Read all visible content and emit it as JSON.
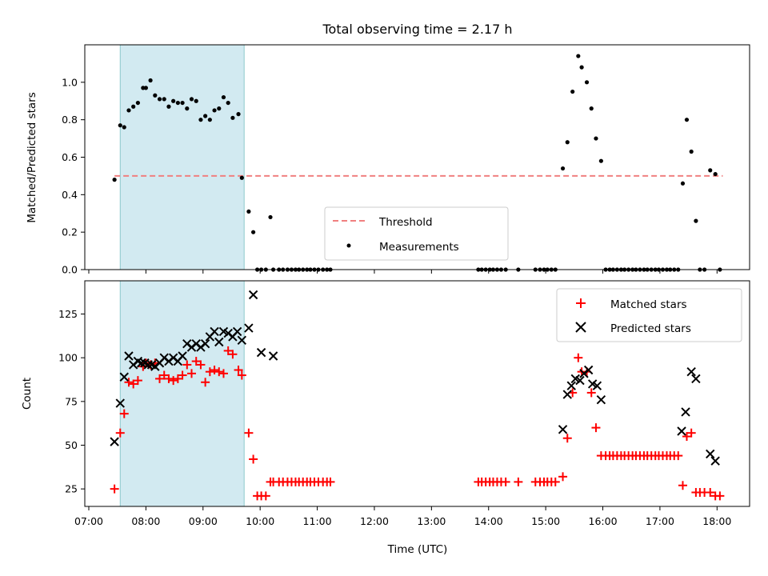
{
  "chart_data": {
    "type": "scatter",
    "title": "Total observing time = 2.17 h",
    "xlabel": "Time (UTC)",
    "x_tick_labels": [
      "07:00",
      "08:00",
      "09:00",
      "10:00",
      "11:00",
      "12:00",
      "13:00",
      "14:00",
      "15:00",
      "16:00",
      "17:00",
      "18:00"
    ],
    "x_tick_hours": [
      7,
      8,
      9,
      10,
      11,
      12,
      13,
      14,
      15,
      16,
      17,
      18
    ],
    "xlim_hours": [
      6.93,
      18.57
    ],
    "observing_window_hours": [
      7.55,
      9.72
    ],
    "colors": {
      "window": "#add8e6",
      "threshold": "#f08080",
      "measurements": "#000000",
      "matched": "#ff0000",
      "predicted": "#000000"
    },
    "panels": [
      {
        "ylabel": "Matched/Predicted stars",
        "ylim": [
          0,
          1.2
        ],
        "yticks": [
          0.0,
          0.2,
          0.4,
          0.6,
          0.8,
          1.0
        ],
        "ytick_labels": [
          "0.0",
          "0.2",
          "0.4",
          "0.6",
          "0.8",
          "1.0"
        ],
        "threshold": 0.5,
        "threshold_xrange": [
          7.45,
          18.1
        ],
        "legend": {
          "placement": "lower-center",
          "threshold_label": "Threshold",
          "measurements_label": "Measurements"
        },
        "measurements": {
          "x": [
            7.45,
            7.55,
            7.62,
            7.7,
            7.78,
            7.86,
            7.95,
            8.0,
            8.08,
            8.16,
            8.24,
            8.32,
            8.4,
            8.48,
            8.56,
            8.64,
            8.72,
            8.8,
            8.88,
            8.96,
            9.04,
            9.12,
            9.2,
            9.28,
            9.36,
            9.44,
            9.52,
            9.62,
            9.68,
            9.8,
            9.88,
            9.95,
            10.02,
            10.1,
            10.18,
            10.23,
            10.33,
            10.4,
            10.48,
            10.55,
            10.62,
            10.68,
            10.75,
            10.82,
            10.88,
            10.95,
            11.02,
            11.1,
            11.17,
            11.23,
            13.82,
            13.88,
            13.95,
            14.02,
            14.08,
            14.15,
            14.22,
            14.3,
            14.52,
            14.82,
            14.9,
            14.97,
            15.03,
            15.1,
            15.17,
            15.3,
            15.38,
            15.47,
            15.57,
            15.63,
            15.72,
            15.8,
            15.88,
            15.97,
            16.05,
            16.12,
            16.18,
            16.25,
            16.32,
            16.38,
            16.45,
            16.52,
            16.58,
            16.65,
            16.72,
            16.78,
            16.85,
            16.92,
            16.98,
            17.05,
            17.12,
            17.18,
            17.25,
            17.32,
            17.4,
            17.47,
            17.55,
            17.63,
            17.7,
            17.78,
            17.88,
            17.97,
            18.05
          ],
          "y": [
            0.48,
            0.77,
            0.76,
            0.85,
            0.87,
            0.89,
            0.97,
            0.97,
            1.01,
            0.93,
            0.91,
            0.91,
            0.87,
            0.9,
            0.89,
            0.89,
            0.86,
            0.91,
            0.9,
            0.8,
            0.82,
            0.8,
            0.85,
            0.86,
            0.92,
            0.89,
            0.81,
            0.83,
            0.49,
            0.31,
            0.2,
            0.0,
            0.0,
            0.0,
            0.28,
            0.0,
            0.0,
            0.0,
            0.0,
            0.0,
            0.0,
            0.0,
            0.0,
            0.0,
            0.0,
            0.0,
            0.0,
            0.0,
            0.0,
            0.0,
            0.0,
            0.0,
            0.0,
            0.0,
            0.0,
            0.0,
            0.0,
            0.0,
            0.0,
            0.0,
            0.0,
            0.0,
            0.0,
            0.0,
            0.0,
            0.54,
            0.68,
            0.95,
            1.14,
            1.08,
            1.0,
            0.86,
            0.7,
            0.58,
            0.0,
            0.0,
            0.0,
            0.0,
            0.0,
            0.0,
            0.0,
            0.0,
            0.0,
            0.0,
            0.0,
            0.0,
            0.0,
            0.0,
            0.0,
            0.0,
            0.0,
            0.0,
            0.0,
            0.0,
            0.46,
            0.8,
            0.63,
            0.26,
            0.0,
            0.0,
            0.53,
            0.51,
            0.0
          ]
        }
      },
      {
        "ylabel": "Count",
        "ylim": [
          15,
          144
        ],
        "yticks": [
          25,
          50,
          75,
          100,
          125
        ],
        "ytick_labels": [
          "25",
          "50",
          "75",
          "100",
          "125"
        ],
        "legend": {
          "placement": "top-right",
          "matched_label": "Matched stars",
          "predicted_label": "Predicted stars"
        },
        "matched": {
          "x": [
            7.45,
            7.55,
            7.62,
            7.7,
            7.78,
            7.86,
            7.95,
            8.0,
            8.08,
            8.16,
            8.24,
            8.32,
            8.4,
            8.48,
            8.56,
            8.64,
            8.72,
            8.8,
            8.88,
            8.96,
            9.04,
            9.12,
            9.2,
            9.28,
            9.36,
            9.44,
            9.52,
            9.62,
            9.68,
            9.8,
            9.88,
            9.95,
            10.02,
            10.1,
            10.18,
            10.23,
            10.33,
            10.4,
            10.48,
            10.55,
            10.62,
            10.68,
            10.75,
            10.82,
            10.88,
            10.95,
            11.02,
            11.1,
            11.17,
            11.23,
            13.82,
            13.88,
            13.95,
            14.02,
            14.08,
            14.15,
            14.22,
            14.3,
            14.52,
            14.82,
            14.9,
            14.97,
            15.03,
            15.1,
            15.17,
            15.3,
            15.38,
            15.47,
            15.57,
            15.63,
            15.72,
            15.8,
            15.88,
            15.97,
            16.05,
            16.12,
            16.18,
            16.25,
            16.32,
            16.38,
            16.45,
            16.52,
            16.58,
            16.65,
            16.72,
            16.78,
            16.85,
            16.92,
            16.98,
            17.05,
            17.12,
            17.18,
            17.25,
            17.32,
            17.4,
            17.47,
            17.55,
            17.63,
            17.7,
            17.78,
            17.88,
            17.97,
            18.05
          ],
          "y": [
            25,
            57,
            68,
            86,
            85,
            87,
            95,
            97,
            96,
            97,
            88,
            90,
            88,
            87,
            88,
            90,
            96,
            91,
            98,
            96,
            86,
            92,
            93,
            92,
            91,
            104,
            102,
            93,
            90,
            57,
            42,
            21,
            21,
            21,
            29,
            29,
            29,
            29,
            29,
            29,
            29,
            29,
            29,
            29,
            29,
            29,
            29,
            29,
            29,
            29,
            29,
            29,
            29,
            29,
            29,
            29,
            29,
            29,
            29,
            29,
            29,
            29,
            29,
            29,
            29,
            32,
            54,
            80,
            100,
            92,
            92,
            80,
            60,
            44,
            44,
            44,
            44,
            44,
            44,
            44,
            44,
            44,
            44,
            44,
            44,
            44,
            44,
            44,
            44,
            44,
            44,
            44,
            44,
            44,
            27,
            55,
            57,
            23,
            23,
            23,
            23,
            21,
            21
          ]
        },
        "predicted": {
          "x": [
            7.45,
            7.55,
            7.62,
            7.7,
            7.78,
            7.86,
            7.92,
            7.98,
            8.04,
            8.1,
            8.16,
            8.24,
            8.32,
            8.4,
            8.48,
            8.56,
            8.64,
            8.72,
            8.8,
            8.88,
            8.96,
            9.04,
            9.12,
            9.2,
            9.28,
            9.36,
            9.44,
            9.52,
            9.6,
            9.68,
            9.8,
            9.88,
            10.02,
            10.23,
            15.3,
            15.38,
            15.45,
            15.52,
            15.6,
            15.67,
            15.75,
            15.82,
            15.9,
            15.97,
            17.38,
            17.45,
            17.55,
            17.63,
            17.88,
            17.97
          ],
          "y": [
            52,
            74,
            89,
            101,
            96,
            98,
            97,
            97,
            96,
            96,
            95,
            97,
            100,
            98,
            100,
            98,
            101,
            108,
            106,
            108,
            106,
            108,
            112,
            115,
            109,
            115,
            114,
            112,
            115,
            110,
            117,
            136,
            103,
            101,
            59,
            79,
            84,
            88,
            87,
            91,
            93,
            85,
            84,
            76,
            58,
            69,
            92,
            88,
            45,
            41
          ]
        }
      }
    ]
  }
}
